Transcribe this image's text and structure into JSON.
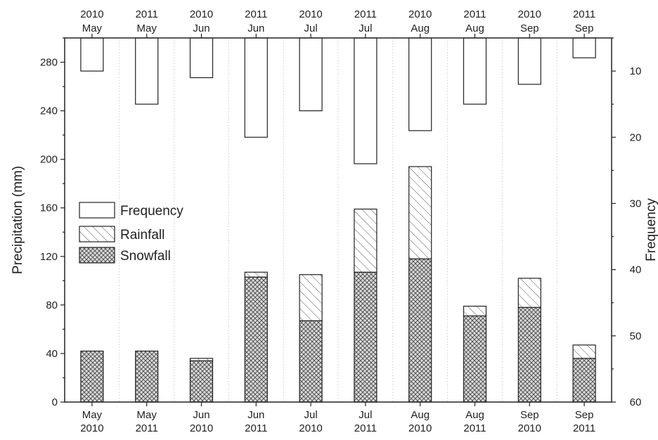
{
  "chart_data": {
    "type": "bar",
    "categories": [
      {
        "month": "May",
        "year": "2010"
      },
      {
        "month": "May",
        "year": "2011"
      },
      {
        "month": "Jun",
        "year": "2010"
      },
      {
        "month": "Jun",
        "year": "2011"
      },
      {
        "month": "Jul",
        "year": "2010"
      },
      {
        "month": "Jul",
        "year": "2011"
      },
      {
        "month": "Aug",
        "year": "2010"
      },
      {
        "month": "Aug",
        "year": "2011"
      },
      {
        "month": "Sep",
        "year": "2010"
      },
      {
        "month": "Sep",
        "year": "2011"
      }
    ],
    "series": [
      {
        "name": "Snowfall",
        "values": [
          42,
          42,
          34,
          103,
          67,
          107,
          118,
          71,
          78,
          36
        ]
      },
      {
        "name": "Rainfall",
        "values": [
          0,
          0,
          2,
          4,
          38,
          52,
          76,
          8,
          24,
          11
        ]
      },
      {
        "name": "Frequency",
        "values": [
          10,
          15,
          11,
          20,
          16,
          24,
          19,
          15,
          12,
          8
        ]
      }
    ],
    "ylabel": "Precipitation (mm)",
    "ylim": [
      0,
      300
    ],
    "yticks": [
      0,
      40,
      80,
      120,
      160,
      200,
      240,
      280
    ],
    "y2label": "Frequency",
    "y2lim": [
      5,
      60
    ],
    "y2ticks": [
      10,
      20,
      30,
      40,
      50,
      60
    ],
    "y2_inverted": true,
    "stacking": "Snowfall + Rainfall stacked from bottom; Frequency bars hang from top on inverted right axis",
    "grid": "vertical dotted lines between categories",
    "legend_position": "left-middle"
  },
  "legend": [
    {
      "key": "frequency",
      "label": "Frequency"
    },
    {
      "key": "rainfall",
      "label": "Rainfall"
    },
    {
      "key": "snowfall",
      "label": "Snowfall"
    }
  ]
}
